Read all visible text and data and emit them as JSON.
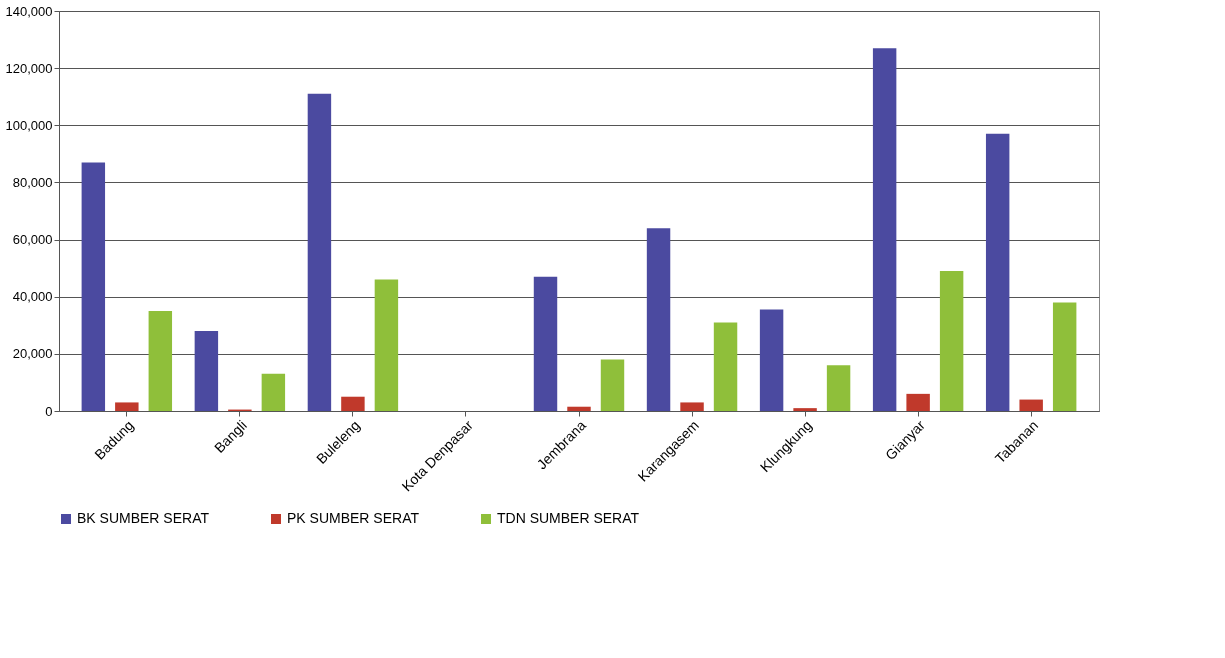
{
  "chart_data": {
    "type": "bar",
    "categories": [
      "Badung",
      "Bangli",
      "Buleleng",
      "Kota Denpasar",
      "Jembrana",
      "Karangasem",
      "Klungkung",
      "Gianyar",
      "Tabanan"
    ],
    "series": [
      {
        "name": "BK SUMBER SERAT",
        "color": "#4b4aa0",
        "values": [
          87000,
          28000,
          111000,
          0,
          47000,
          64000,
          35500,
          127000,
          97000
        ]
      },
      {
        "name": "PK SUMBER SERAT",
        "color": "#c0392b",
        "values": [
          3000,
          500,
          5000,
          0,
          1500,
          3000,
          1000,
          6000,
          4000
        ]
      },
      {
        "name": "TDN SUMBER SERAT",
        "color": "#8fbf3a",
        "values": [
          35000,
          13000,
          46000,
          0,
          18000,
          31000,
          16000,
          49000,
          38000
        ]
      }
    ],
    "ylim": [
      0,
      140000
    ],
    "yticks": [
      {
        "value": 0,
        "label": "0"
      },
      {
        "value": 20000,
        "label": "20,000"
      },
      {
        "value": 40000,
        "label": "40,000"
      },
      {
        "value": 60000,
        "label": "60,000"
      },
      {
        "value": 80000,
        "label": "80,000"
      },
      {
        "value": 100000,
        "label": "100,000"
      },
      {
        "value": 120000,
        "label": "120,000"
      },
      {
        "value": 140000,
        "label": "140,000"
      }
    ],
    "grid": "y",
    "legend": "bottom"
  }
}
